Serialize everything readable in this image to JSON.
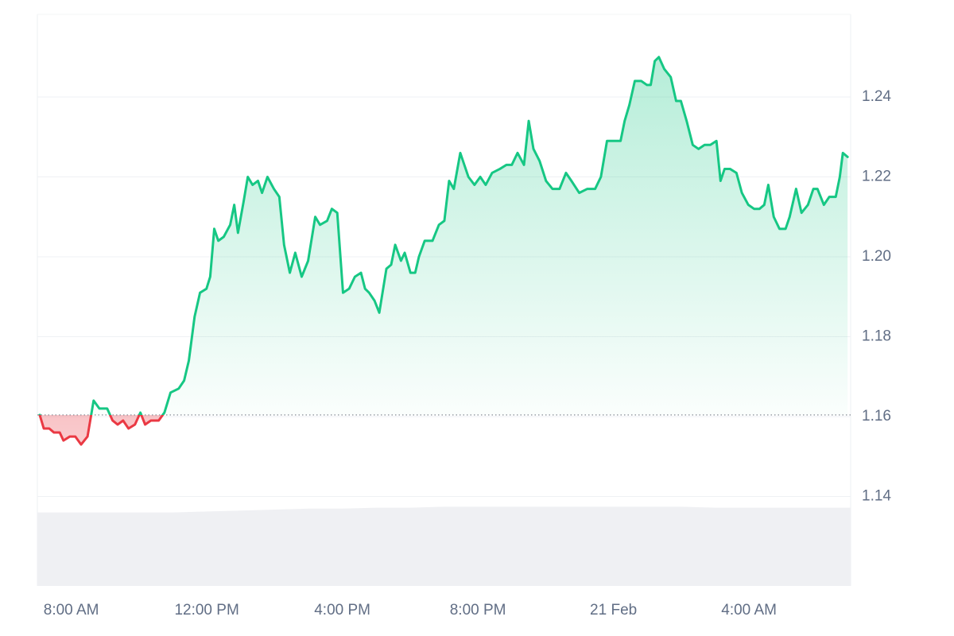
{
  "chart_data": {
    "type": "line",
    "xlim": [
      7,
      31
    ],
    "xticks": [
      {
        "value": 8,
        "label": "8:00 AM"
      },
      {
        "value": 12,
        "label": "12:00 PM"
      },
      {
        "value": 16,
        "label": "4:00 PM"
      },
      {
        "value": 20,
        "label": "8:00 PM"
      },
      {
        "value": 24,
        "label": "21 Feb"
      },
      {
        "value": 28,
        "label": "4:00 AM"
      }
    ],
    "ylim": [
      1.1176,
      1.2607
    ],
    "yticks": [
      1.14,
      1.16,
      1.18,
      {
        "value": 1.2,
        "label": "1.20"
      },
      1.22,
      1.24
    ],
    "grid": true,
    "baseline": 1.1604,
    "up_color": "#16c784",
    "down_color": "#ea3943",
    "x": [
      7.07,
      7.19,
      7.35,
      7.49,
      7.66,
      7.77,
      7.96,
      8.12,
      8.29,
      8.48,
      8.66,
      8.83,
      9.06,
      9.22,
      9.37,
      9.53,
      9.69,
      9.88,
      10.04,
      10.18,
      10.35,
      10.58,
      10.75,
      10.93,
      11.17,
      11.33,
      11.47,
      11.64,
      11.8,
      11.99,
      12.1,
      12.22,
      12.34,
      12.5,
      12.69,
      12.81,
      12.92,
      13.09,
      13.21,
      13.35,
      13.51,
      13.63,
      13.79,
      13.98,
      14.14,
      14.28,
      14.45,
      14.61,
      14.8,
      14.99,
      15.2,
      15.34,
      15.55,
      15.69,
      15.85,
      16.02,
      16.2,
      16.37,
      16.55,
      16.67,
      16.79,
      16.95,
      17.09,
      17.3,
      17.44,
      17.56,
      17.73,
      17.84,
      18.01,
      18.15,
      18.26,
      18.43,
      18.66,
      18.85,
      19.01,
      19.15,
      19.29,
      19.48,
      19.6,
      19.72,
      19.9,
      20.07,
      20.23,
      20.42,
      20.65,
      20.84,
      21.0,
      21.17,
      21.36,
      21.5,
      21.64,
      21.82,
      22.01,
      22.2,
      22.41,
      22.6,
      22.76,
      22.99,
      23.23,
      23.46,
      23.63,
      23.81,
      24.05,
      24.21,
      24.33,
      24.47,
      24.63,
      24.82,
      24.99,
      25.1,
      25.22,
      25.34,
      25.5,
      25.69,
      25.85,
      25.99,
      26.16,
      26.34,
      26.51,
      26.69,
      26.86,
      27.04,
      27.16,
      27.28,
      27.44,
      27.63,
      27.79,
      27.98,
      28.15,
      28.31,
      28.45,
      28.57,
      28.73,
      28.9,
      29.08,
      29.2,
      29.39,
      29.55,
      29.74,
      29.9,
      30.02,
      30.21,
      30.37,
      30.56,
      30.68,
      30.77,
      30.91
    ],
    "values": [
      1.1604,
      1.157,
      1.157,
      1.156,
      1.156,
      1.154,
      1.155,
      1.155,
      1.153,
      1.155,
      1.164,
      1.162,
      1.162,
      1.159,
      1.158,
      1.159,
      1.157,
      1.158,
      1.161,
      1.158,
      1.159,
      1.159,
      1.161,
      1.166,
      1.167,
      1.169,
      1.174,
      1.185,
      1.191,
      1.192,
      1.195,
      1.207,
      1.204,
      1.205,
      1.208,
      1.213,
      1.206,
      1.214,
      1.22,
      1.218,
      1.219,
      1.216,
      1.22,
      1.217,
      1.215,
      1.203,
      1.196,
      1.201,
      1.195,
      1.199,
      1.21,
      1.208,
      1.209,
      1.212,
      1.211,
      1.191,
      1.192,
      1.195,
      1.196,
      1.192,
      1.191,
      1.189,
      1.186,
      1.197,
      1.198,
      1.203,
      1.199,
      1.201,
      1.196,
      1.196,
      1.2,
      1.204,
      1.204,
      1.208,
      1.209,
      1.219,
      1.217,
      1.226,
      1.223,
      1.22,
      1.218,
      1.22,
      1.218,
      1.221,
      1.222,
      1.223,
      1.223,
      1.226,
      1.223,
      1.234,
      1.227,
      1.224,
      1.219,
      1.217,
      1.217,
      1.221,
      1.219,
      1.216,
      1.217,
      1.217,
      1.22,
      1.229,
      1.229,
      1.229,
      1.234,
      1.238,
      1.244,
      1.244,
      1.243,
      1.243,
      1.249,
      1.25,
      1.247,
      1.245,
      1.239,
      1.239,
      1.234,
      1.228,
      1.227,
      1.228,
      1.228,
      1.229,
      1.219,
      1.222,
      1.222,
      1.221,
      1.216,
      1.213,
      1.212,
      1.212,
      1.213,
      1.218,
      1.21,
      1.207,
      1.207,
      1.21,
      1.217,
      1.211,
      1.213,
      1.217,
      1.217,
      1.213,
      1.215,
      1.215,
      1.22,
      1.226,
      1.225
    ],
    "volume": {
      "color": "#eff0f3",
      "ylim": [
        0,
        100
      ],
      "x": [
        7,
        8,
        9,
        10,
        11,
        12,
        13,
        14,
        15,
        16,
        17,
        18,
        19,
        20,
        21,
        22,
        23,
        24,
        25,
        26,
        27,
        28,
        29,
        30,
        31
      ],
      "values": [
        77,
        77,
        77,
        77,
        77,
        78,
        79,
        80,
        81,
        81,
        82,
        82,
        83,
        83,
        83,
        83,
        83,
        83,
        83,
        83,
        82,
        82,
        82,
        82,
        82
      ]
    }
  }
}
